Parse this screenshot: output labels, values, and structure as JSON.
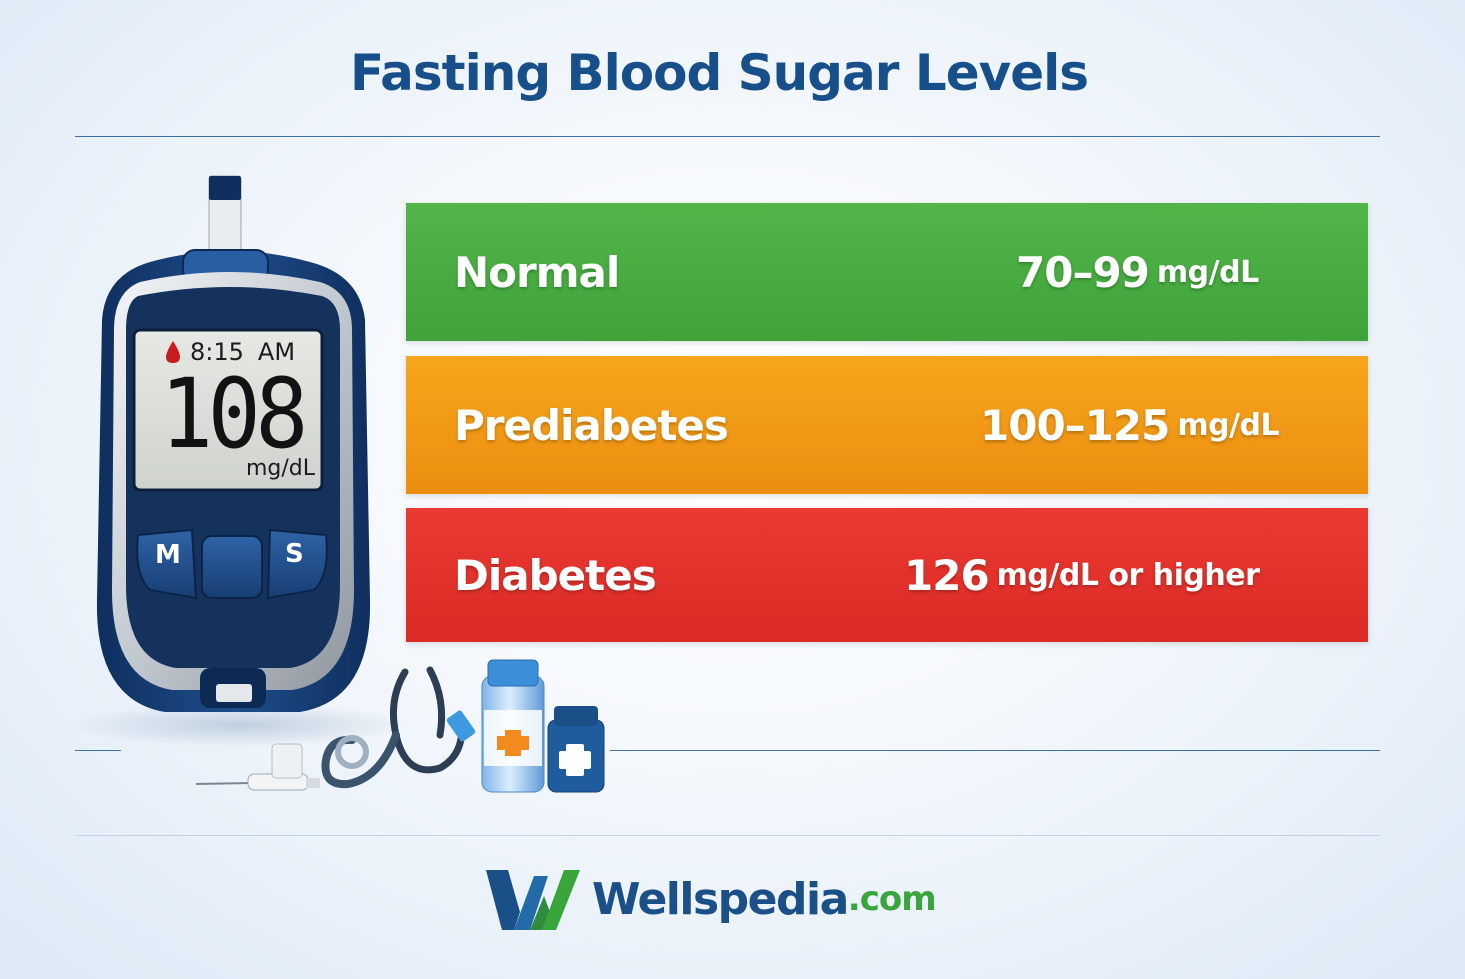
{
  "title": "Fasting Blood Sugar Levels",
  "ranges": [
    {
      "label": "Normal",
      "value": "70–99",
      "unit": "mg/dL",
      "color": "#47ad41"
    },
    {
      "label": "Prediabetes",
      "value": "100–125",
      "unit": "mg/dL",
      "color": "#f29a16"
    },
    {
      "label": "Diabetes",
      "value": "126",
      "unit": "mg/dL or higher",
      "color": "#e3322c"
    }
  ],
  "meter": {
    "time": "8:15",
    "ampm": "AM",
    "reading": "108",
    "unit": "mg/dL",
    "button_left": "M",
    "button_right": "S",
    "icons": [
      "blood-drop-icon",
      "glucose-meter-icon",
      "stethoscope-icon",
      "lancet-icon",
      "medicine-bottle-icon"
    ]
  },
  "brand": {
    "name": "Wellspedia",
    "tld": ".com",
    "primary_color": "#1b4f88",
    "accent_color": "#3aa53c"
  }
}
